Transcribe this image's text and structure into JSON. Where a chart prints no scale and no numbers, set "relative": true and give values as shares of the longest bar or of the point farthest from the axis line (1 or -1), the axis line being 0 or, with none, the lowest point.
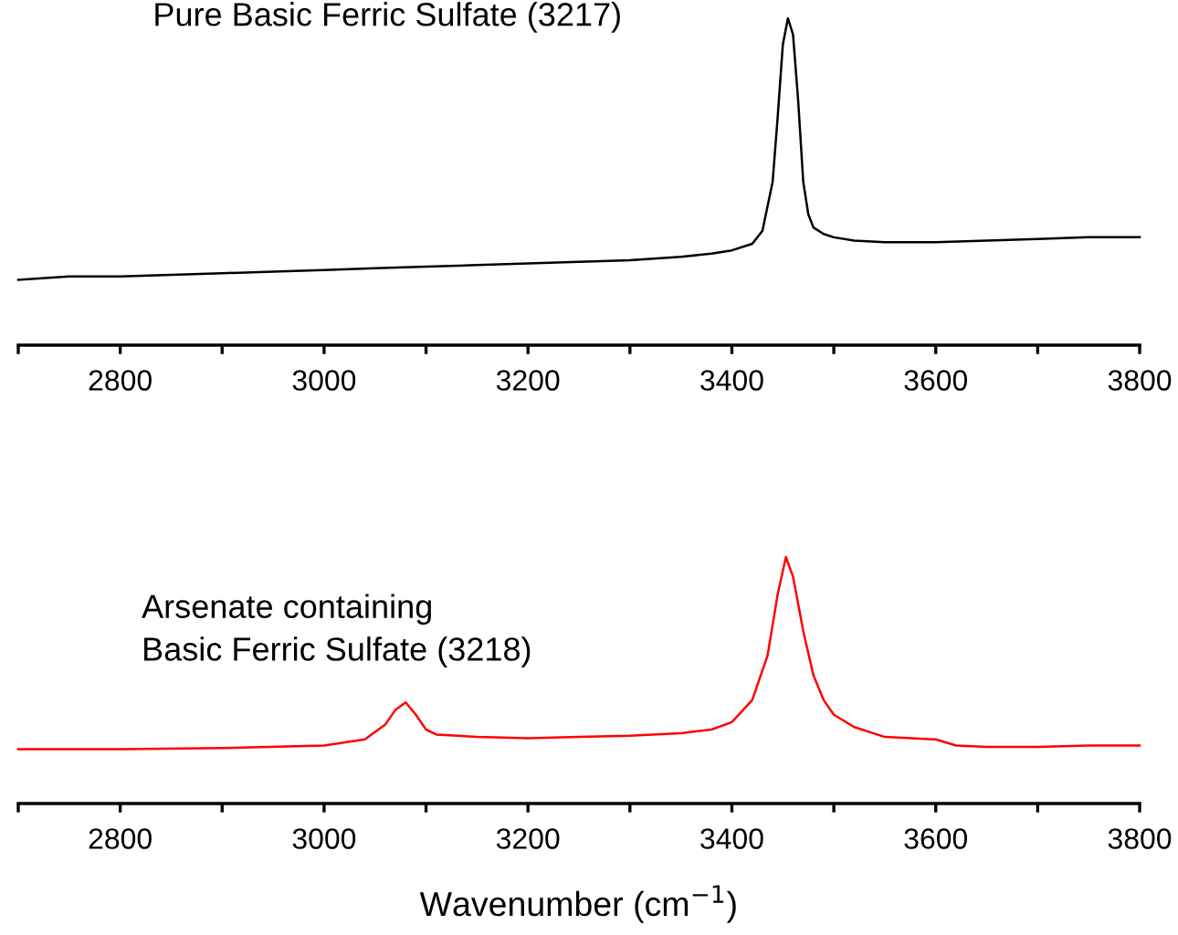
{
  "chart_data": [
    {
      "type": "line",
      "relative": true,
      "annotations": [
        "Pure Basic Ferric Sulfate (3217)"
      ],
      "xlim": [
        2700,
        3800
      ],
      "xticks": [
        {
          "value": 2700,
          "label": null
        },
        2800,
        {
          "value": 2900,
          "label": null
        },
        3000,
        {
          "value": 3100,
          "label": null
        },
        3200,
        {
          "value": 3300,
          "label": null
        },
        3400,
        {
          "value": 3500,
          "label": null
        },
        3600,
        {
          "value": 3700,
          "label": null
        },
        3800
      ],
      "tick_labels": "x",
      "grid": false,
      "legend": false,
      "series": [
        {
          "color": "#000000",
          "x": [
            2700,
            2750,
            2800,
            2850,
            2900,
            2950,
            3000,
            3050,
            3100,
            3150,
            3200,
            3250,
            3300,
            3350,
            3380,
            3400,
            3420,
            3430,
            3440,
            3445,
            3450,
            3455,
            3460,
            3465,
            3470,
            3475,
            3480,
            3490,
            3500,
            3520,
            3550,
            3600,
            3650,
            3700,
            3750,
            3800
          ],
          "values": [
            0.2,
            0.21,
            0.21,
            0.215,
            0.22,
            0.225,
            0.23,
            0.235,
            0.24,
            0.245,
            0.25,
            0.255,
            0.26,
            0.27,
            0.28,
            0.29,
            0.31,
            0.35,
            0.5,
            0.7,
            0.92,
            1.0,
            0.95,
            0.75,
            0.5,
            0.4,
            0.36,
            0.34,
            0.33,
            0.32,
            0.315,
            0.315,
            0.32,
            0.325,
            0.33,
            0.33
          ]
        }
      ]
    },
    {
      "type": "line",
      "relative": true,
      "xlabel": "Wavenumber (cm$^{−1}$)",
      "annotations": [
        "Arsenate containing\nBasic Ferric Sulfate (3218)"
      ],
      "xlim": [
        2700,
        3800
      ],
      "xticks": [
        {
          "value": 2700,
          "label": null
        },
        2800,
        {
          "value": 2900,
          "label": null
        },
        3000,
        {
          "value": 3100,
          "label": null
        },
        3200,
        {
          "value": 3300,
          "label": null
        },
        3400,
        {
          "value": 3500,
          "label": null
        },
        3600,
        {
          "value": 3700,
          "label": null
        },
        3800
      ],
      "tick_labels": "x",
      "grid": false,
      "legend": false,
      "series": [
        {
          "color": "#ff0000",
          "x": [
            2700,
            2800,
            2900,
            3000,
            3040,
            3060,
            3070,
            3080,
            3090,
            3100,
            3110,
            3150,
            3200,
            3250,
            3300,
            3350,
            3380,
            3400,
            3420,
            3435,
            3445,
            3453,
            3460,
            3470,
            3480,
            3490,
            3500,
            3520,
            3550,
            3600,
            3620,
            3650,
            3700,
            3750,
            3800
          ],
          "values": [
            0.22,
            0.22,
            0.225,
            0.235,
            0.26,
            0.32,
            0.38,
            0.41,
            0.36,
            0.3,
            0.28,
            0.27,
            0.265,
            0.27,
            0.275,
            0.285,
            0.3,
            0.33,
            0.42,
            0.6,
            0.85,
            1.0,
            0.92,
            0.7,
            0.52,
            0.42,
            0.36,
            0.31,
            0.27,
            0.26,
            0.235,
            0.23,
            0.23,
            0.235,
            0.235
          ]
        }
      ]
    }
  ]
}
